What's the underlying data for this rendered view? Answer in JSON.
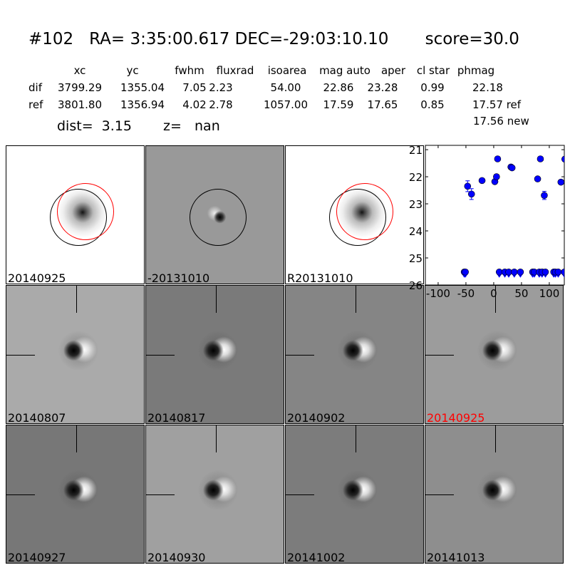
{
  "header": {
    "title": "#102   RA= 3:35:00.617 DEC=-29:03:10.10       score=30.0"
  },
  "table": {
    "columns": [
      "xc",
      "yc",
      "fwhm",
      "fluxrad",
      "isoarea",
      "mag auto",
      "aper",
      "cl star",
      "phmag"
    ],
    "rows": [
      {
        "label": "dif",
        "values": [
          "3799.29",
          "1355.04",
          "7.05",
          "2.23",
          "54.00",
          "22.86",
          "23.28",
          "0.99",
          "22.18"
        ]
      },
      {
        "label": "ref",
        "values": [
          "3801.80",
          "1356.94",
          "4.02",
          "2.78",
          "1057.00",
          "17.59",
          "17.65",
          "0.85",
          "17.57 ref"
        ]
      }
    ],
    "extra": "17.56 new",
    "dist": "dist=  3.15",
    "z": "z=   nan"
  },
  "panels": [
    {
      "label": "20140925",
      "kind": "science",
      "bg": "#ffffff"
    },
    {
      "label": "-20131010",
      "kind": "difference",
      "bg": "#999999"
    },
    {
      "label": "R20131010",
      "kind": "reference",
      "bg": "#ffffff"
    },
    {
      "label": "20140807",
      "bg": "#aaaaaa"
    },
    {
      "label": "20140817",
      "bg": "#7a7a7a"
    },
    {
      "label": "20140902",
      "bg": "#858585"
    },
    {
      "label": "20140925",
      "bg": "#9c9c9c",
      "label_color": "#ff0000"
    },
    {
      "label": "20140927",
      "bg": "#777777"
    },
    {
      "label": "20140930",
      "bg": "#a0a0a0"
    },
    {
      "label": "20141002",
      "bg": "#7c7c7c"
    },
    {
      "label": "20141013",
      "bg": "#8e8e8e"
    }
  ],
  "chart_data": {
    "type": "scatter",
    "title": "",
    "xlabel": "",
    "ylabel": "",
    "xlim": [
      -123,
      127
    ],
    "ylim": [
      26,
      20.84
    ],
    "y_inverted": true,
    "xticks": [
      "-100",
      "-50",
      "0",
      "50",
      "100"
    ],
    "yticks": [
      "21",
      "22",
      "23",
      "24",
      "25",
      "26"
    ],
    "color": "#0000ff",
    "detections": [
      {
        "x": -47,
        "y": 22.35,
        "err": 0.2
      },
      {
        "x": -40,
        "y": 22.64,
        "err": 0.2
      },
      {
        "x": -21,
        "y": 22.14,
        "err": 0.05
      },
      {
        "x": 2,
        "y": 22.18,
        "err": 0.05
      },
      {
        "x": 5,
        "y": 22.0,
        "err": 0.03
      },
      {
        "x": 7,
        "y": 21.34,
        "err": 0.03
      },
      {
        "x": 31,
        "y": 21.64,
        "err": 0.03
      },
      {
        "x": 33,
        "y": 21.67,
        "err": 0.03
      },
      {
        "x": 79,
        "y": 22.08,
        "err": 0.05
      },
      {
        "x": 84,
        "y": 21.34,
        "err": 0.03
      },
      {
        "x": 91,
        "y": 22.69,
        "err": 0.15
      },
      {
        "x": 121,
        "y": 22.2,
        "err": 0.05
      },
      {
        "x": 128,
        "y": 21.35,
        "err": 0.03
      }
    ],
    "upper_limits": {
      "y": 25.52,
      "x": [
        -53,
        -51,
        10,
        20,
        27,
        37,
        48,
        70,
        73,
        82,
        87,
        93,
        108,
        111,
        116,
        127
      ]
    }
  }
}
